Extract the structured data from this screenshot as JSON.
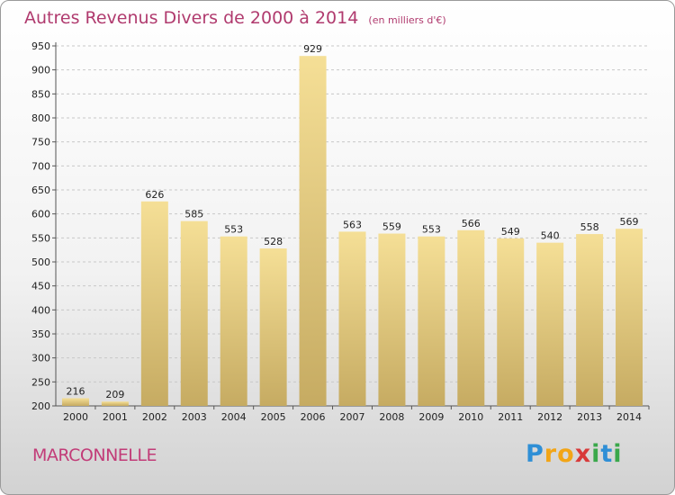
{
  "title": "Autres Revenus Divers de 2000 à 2014",
  "unit": "(en milliers d'€)",
  "commune": "MARCONNELLE",
  "logo": {
    "letters": [
      "P",
      "r",
      "o",
      "x",
      "i",
      "t",
      "i"
    ],
    "colors": [
      "#2f8fd6",
      "#f2a516",
      "#f2a516",
      "#d83a3a",
      "#3aa84b",
      "#2f8fd6",
      "#3aa84b"
    ]
  },
  "colors": {
    "bar_light": "#f5df96",
    "bar_dark": "#c6ab62",
    "title": "#b03a6e"
  },
  "chart_data": {
    "type": "bar",
    "categories": [
      "2000",
      "2001",
      "2002",
      "2003",
      "2004",
      "2005",
      "2006",
      "2007",
      "2008",
      "2009",
      "2010",
      "2011",
      "2012",
      "2013",
      "2014"
    ],
    "values": [
      216,
      209,
      626,
      585,
      553,
      528,
      929,
      563,
      559,
      553,
      566,
      549,
      540,
      558,
      569
    ],
    "ylim": [
      200,
      950
    ],
    "yticks": [
      200,
      250,
      300,
      350,
      400,
      450,
      500,
      550,
      600,
      650,
      700,
      750,
      800,
      850,
      900,
      950
    ],
    "grid": true
  }
}
